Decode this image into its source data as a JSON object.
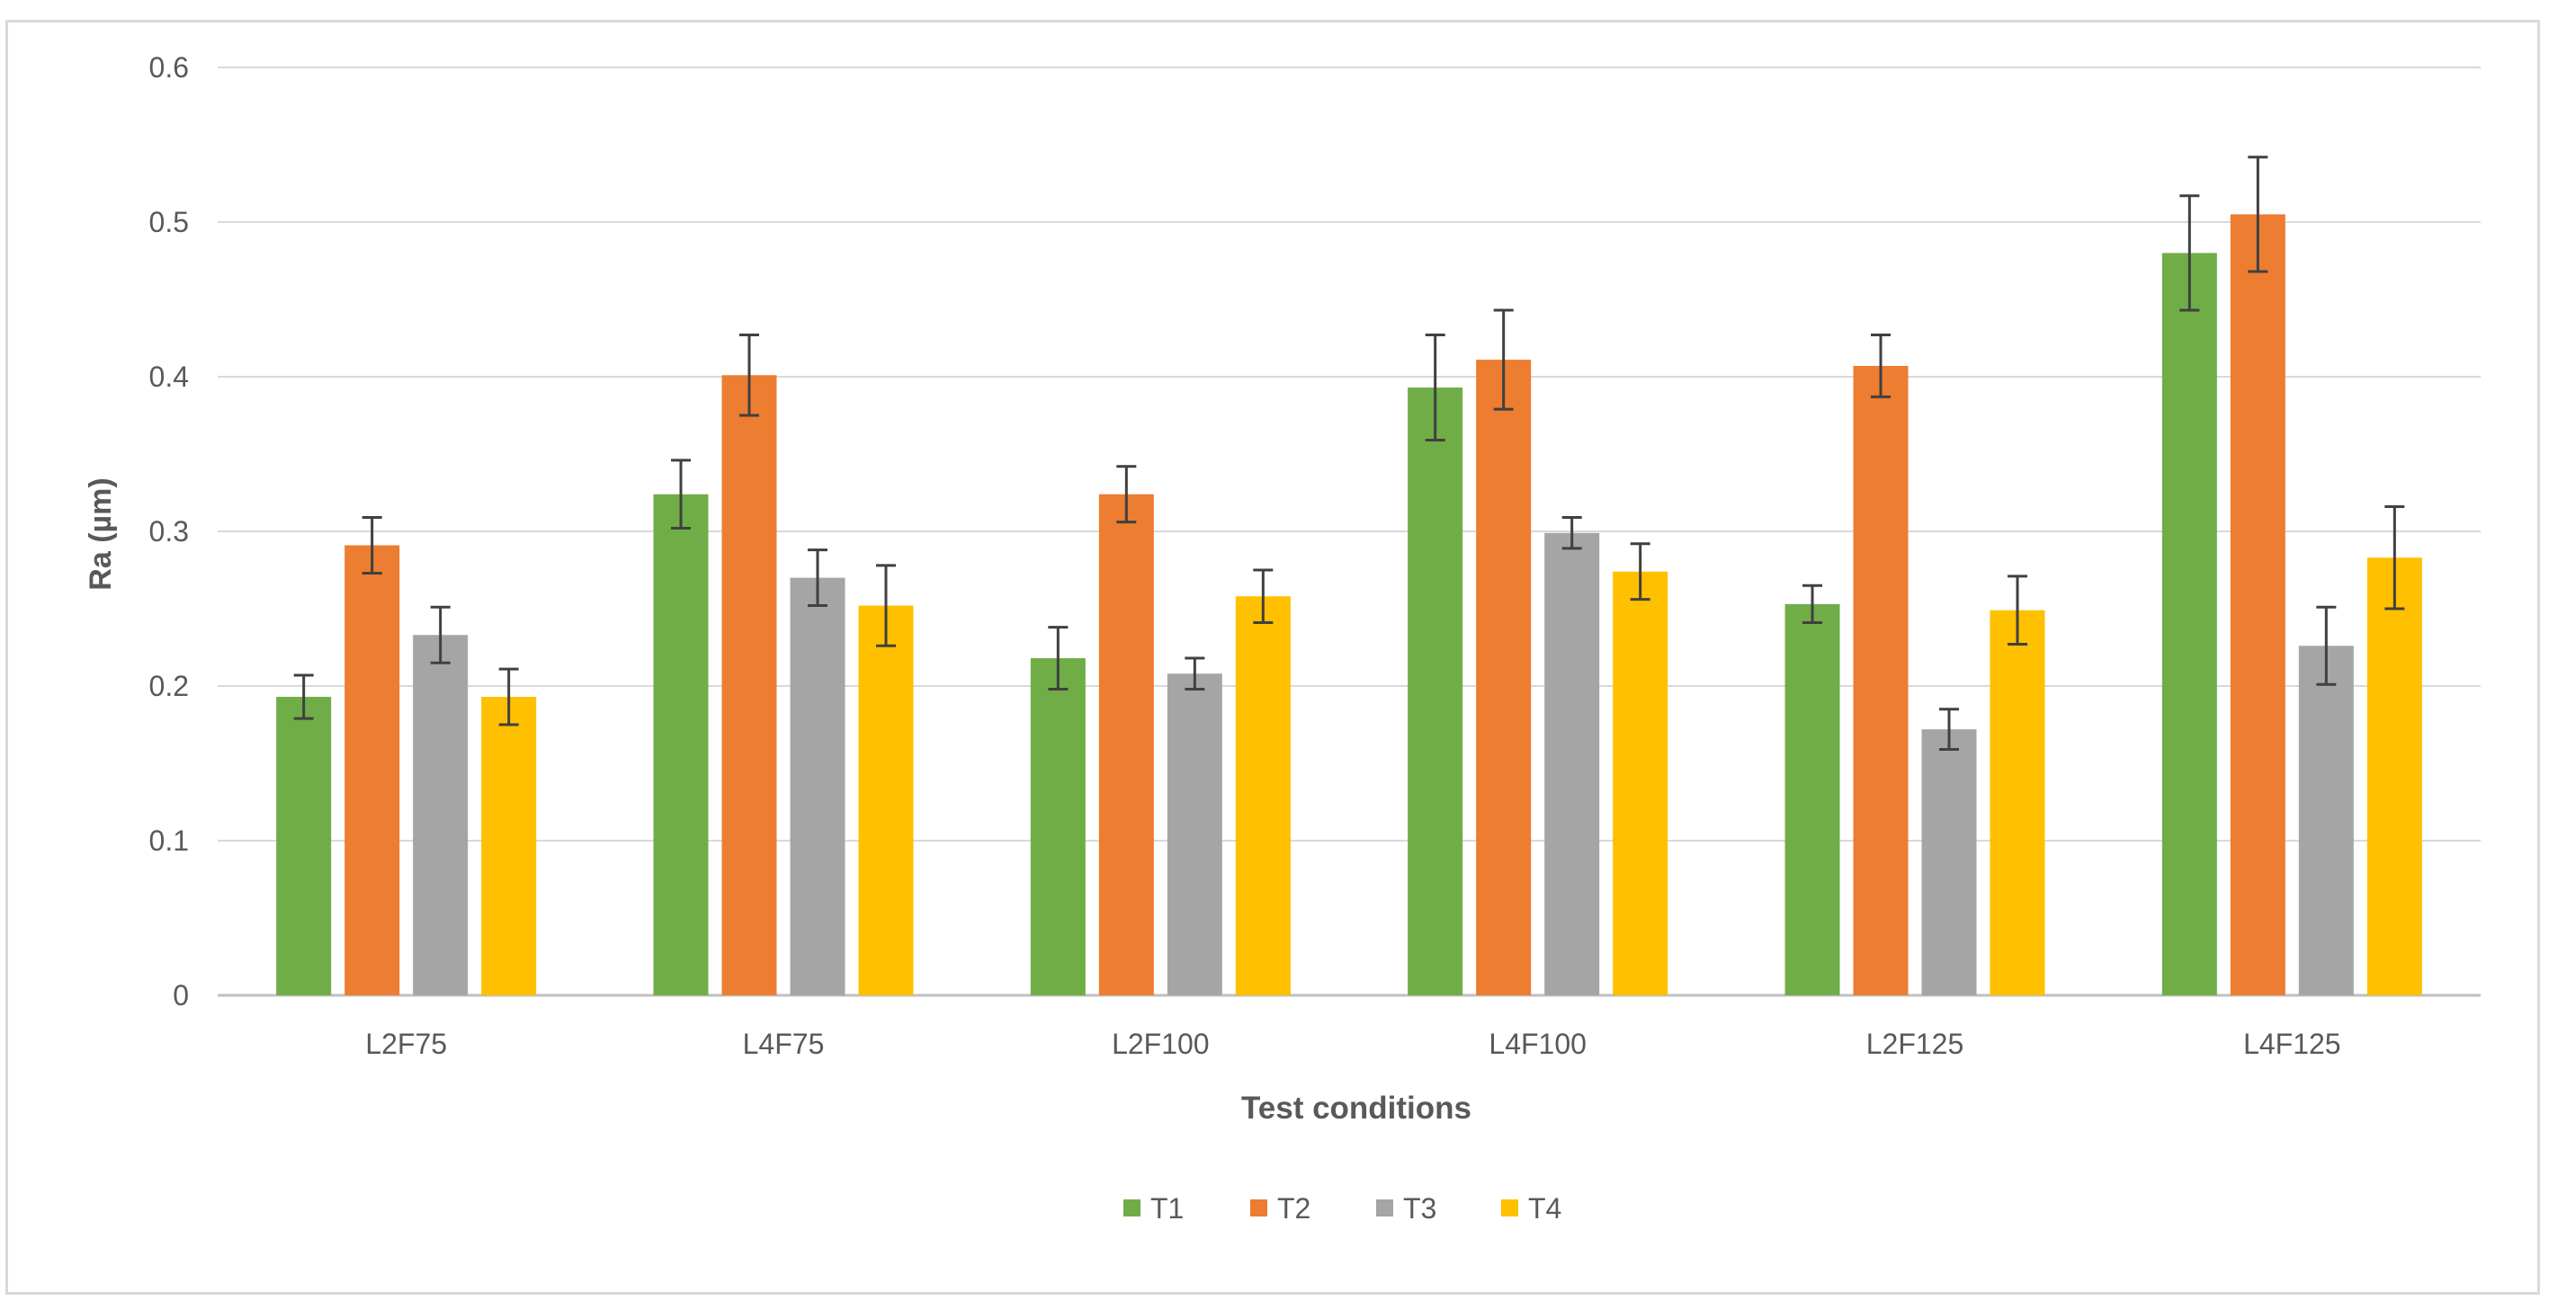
{
  "chart_data": {
    "type": "bar",
    "title": "",
    "xlabel": "Test conditions",
    "ylabel": "Ra (µm)",
    "ylim": [
      0,
      0.6
    ],
    "yticks": [
      "0",
      "0.1",
      "0.2",
      "0.3",
      "0.4",
      "0.5",
      "0.6"
    ],
    "grid": true,
    "legend_position": "bottom",
    "categories": [
      "L2F75",
      "L4F75",
      "L2F100",
      "L4F100",
      "L2F125",
      "L4F125"
    ],
    "series": [
      {
        "name": "T1",
        "color": "#70ad47",
        "values": [
          0.193,
          0.324,
          0.218,
          0.393,
          0.253,
          0.48
        ],
        "errors": [
          0.014,
          0.022,
          0.02,
          0.034,
          0.012,
          0.037
        ]
      },
      {
        "name": "T2",
        "color": "#ed7d31",
        "values": [
          0.291,
          0.401,
          0.324,
          0.411,
          0.407,
          0.505
        ],
        "errors": [
          0.018,
          0.026,
          0.018,
          0.032,
          0.02,
          0.037
        ]
      },
      {
        "name": "T3",
        "color": "#a5a5a5",
        "values": [
          0.233,
          0.27,
          0.208,
          0.299,
          0.172,
          0.226
        ],
        "errors": [
          0.018,
          0.018,
          0.01,
          0.01,
          0.013,
          0.025
        ]
      },
      {
        "name": "T4",
        "color": "#ffc000",
        "values": [
          0.193,
          0.252,
          0.258,
          0.274,
          0.249,
          0.283
        ],
        "errors": [
          0.018,
          0.026,
          0.017,
          0.018,
          0.022,
          0.033
        ]
      }
    ]
  }
}
